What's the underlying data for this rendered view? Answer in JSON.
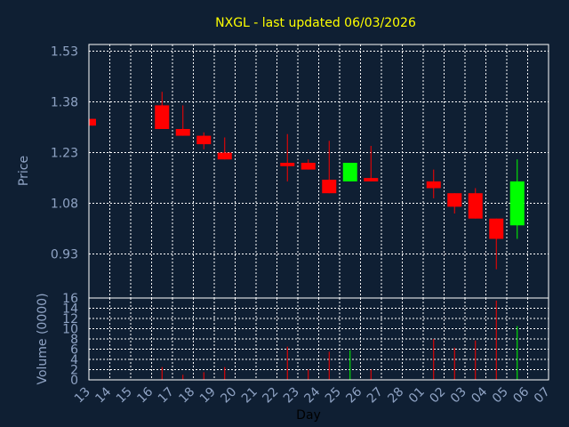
{
  "colors": {
    "background": "#0f1f33",
    "grid": "#ffffff",
    "axis": "#ffffff",
    "text": "#8fa3c4",
    "title": "#ffff00",
    "up": "#00ff00",
    "down": "#ff0000"
  },
  "chart_data": {
    "type": "candlestick",
    "title": "NXGL - last updated 06/03/2026",
    "xlabel": "Day",
    "ylabel": "Price",
    "ylabel2": "Volume (0000)",
    "grid": true,
    "x_ticks": [
      "13",
      "14",
      "15",
      "16",
      "17",
      "18",
      "19",
      "20",
      "21",
      "22",
      "23",
      "24",
      "25",
      "26",
      "27",
      "28",
      "01",
      "02",
      "03",
      "04",
      "05",
      "06",
      "07"
    ],
    "price_ticks": [
      "1.53",
      "1.38",
      "1.23",
      "1.08",
      "0.93"
    ],
    "price_ylim": [
      0.8,
      1.55
    ],
    "volume_ticks": [
      "16",
      "14",
      "12",
      "10",
      "8",
      "6",
      "4",
      "2",
      "0"
    ],
    "volume_ylim": [
      0,
      16
    ],
    "candles": [
      {
        "day": "13",
        "open": 1.33,
        "close": 1.31,
        "high": 1.33,
        "low": 1.31,
        "volume": 0
      },
      {
        "day": "17",
        "open": 1.37,
        "close": 1.3,
        "high": 1.41,
        "low": 1.3,
        "volume": 2.5
      },
      {
        "day": "18",
        "open": 1.3,
        "close": 1.28,
        "high": 1.37,
        "low": 1.28,
        "volume": 1.0
      },
      {
        "day": "19",
        "open": 1.28,
        "close": 1.255,
        "high": 1.29,
        "low": 1.24,
        "volume": 1.5
      },
      {
        "day": "20",
        "open": 1.23,
        "close": 1.21,
        "high": 1.275,
        "low": 1.21,
        "volume": 2.5
      },
      {
        "day": "23",
        "open": 1.2,
        "close": 1.19,
        "high": 1.285,
        "low": 1.145,
        "volume": 6.5
      },
      {
        "day": "24",
        "open": 1.2,
        "close": 1.18,
        "high": 1.21,
        "low": 1.18,
        "volume": 2.0
      },
      {
        "day": "25",
        "open": 1.15,
        "close": 1.11,
        "high": 1.265,
        "low": 1.11,
        "volume": 5.5
      },
      {
        "day": "26",
        "open": 1.145,
        "close": 1.2,
        "high": 1.2,
        "low": 1.145,
        "volume": 5.8
      },
      {
        "day": "27",
        "open": 1.155,
        "close": 1.145,
        "high": 1.25,
        "low": 1.145,
        "volume": 2.0
      },
      {
        "day": "02",
        "open": 1.145,
        "close": 1.125,
        "high": 1.18,
        "low": 1.095,
        "volume": 8.0
      },
      {
        "day": "03",
        "open": 1.11,
        "close": 1.07,
        "high": 1.11,
        "low": 1.05,
        "volume": 6.3
      },
      {
        "day": "04",
        "open": 1.11,
        "close": 1.035,
        "high": 1.125,
        "low": 1.035,
        "volume": 7.7
      },
      {
        "day": "05",
        "open": 1.035,
        "close": 0.975,
        "high": 1.035,
        "low": 0.885,
        "volume": 15.5
      },
      {
        "day": "06",
        "open": 1.015,
        "close": 1.145,
        "high": 1.21,
        "low": 0.975,
        "volume": 10.5
      }
    ]
  }
}
